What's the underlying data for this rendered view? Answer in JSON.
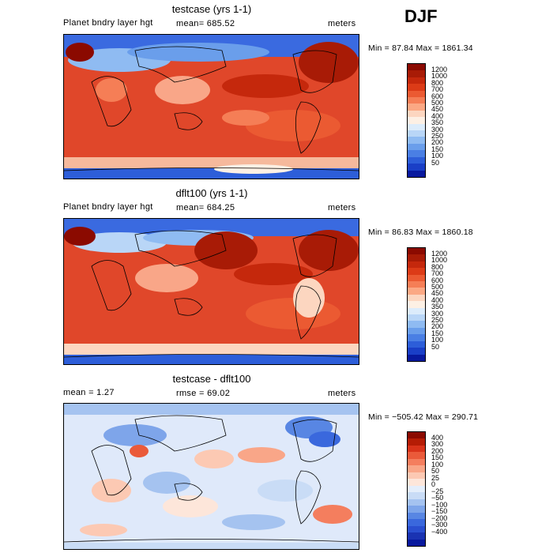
{
  "season": "DJF",
  "panels": [
    {
      "title": "testcase (yrs 1-1)",
      "left_label": "Planet bndry layer hgt",
      "mean_label": "mean= 685.52",
      "units": "meters",
      "minmax": "Min =  87.84 Max = 1861.34",
      "levels": [
        "1200",
        "1000",
        "800",
        "700",
        "600",
        "500",
        "450",
        "400",
        "350",
        "300",
        "250",
        "200",
        "150",
        "100",
        "50"
      ],
      "colors": [
        "#8b0a00",
        "#a81b06",
        "#c5280c",
        "#dc3b17",
        "#eb5a32",
        "#f57e56",
        "#fba884",
        "#fcd6c0",
        "#fdf0e4",
        "#dcecfb",
        "#b9d6f7",
        "#8fbbf2",
        "#6a9eeb",
        "#4a7fe4",
        "#2d5ed9",
        "#1a3fc7",
        "#08199e"
      ]
    },
    {
      "title": "dflt100 (yrs 1-1)",
      "left_label": "Planet bndry layer hgt",
      "mean_label": "mean= 684.25",
      "units": "meters",
      "minmax": "Min =  86.83 Max = 1860.18",
      "levels": [
        "1200",
        "1000",
        "800",
        "700",
        "600",
        "500",
        "450",
        "400",
        "350",
        "300",
        "250",
        "200",
        "150",
        "100",
        "50"
      ],
      "colors": [
        "#8b0a00",
        "#a81b06",
        "#c5280c",
        "#dc3b17",
        "#eb5a32",
        "#f57e56",
        "#fba884",
        "#fcd6c0",
        "#fdf0e4",
        "#dcecfb",
        "#b9d6f7",
        "#8fbbf2",
        "#6a9eeb",
        "#4a7fe4",
        "#2d5ed9",
        "#1a3fc7",
        "#08199e"
      ]
    },
    {
      "title": "testcase - dflt100",
      "left_label": "mean =    1.27",
      "mean_label": "rmse =   69.02",
      "units": "meters",
      "minmax": "Min = −505.42 Max = 290.71",
      "levels": [
        "400",
        "300",
        "200",
        "150",
        "100",
        "50",
        "25",
        "0",
        "−25",
        "−50",
        "−100",
        "−150",
        "−200",
        "−300",
        "−400"
      ],
      "colors": [
        "#8b0a00",
        "#b51c05",
        "#d9331a",
        "#ea5a3a",
        "#f47e5e",
        "#f9a688",
        "#fcc9b3",
        "#fde6da",
        "#e4eefb",
        "#c9dcf6",
        "#a5c3f0",
        "#7ea5ea",
        "#5886e3",
        "#3a68dd",
        "#2a4fd0",
        "#1a33b2",
        "#08199e"
      ]
    }
  ]
}
